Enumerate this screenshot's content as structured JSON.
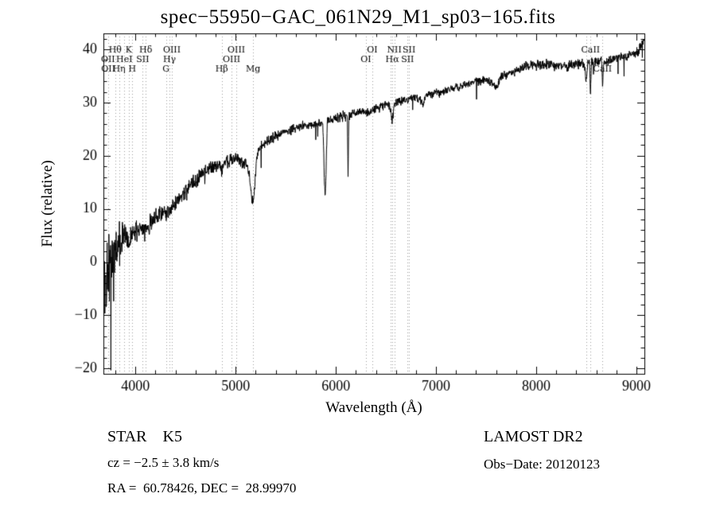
{
  "title": "spec−55950−GAC_061N29_M1_sp03−165.fits",
  "chart_data": {
    "type": "line",
    "title": "spec−55950−GAC_061N29_M1_sp03−165.fits",
    "xlabel": "Wavelength (Å)",
    "ylabel": "Flux (relative)",
    "xlim": [
      3680,
      9080
    ],
    "ylim": [
      -21,
      43
    ],
    "grid": false,
    "xticks": [
      {
        "v": 4000,
        "label": "4000"
      },
      {
        "v": 5000,
        "label": "5000"
      },
      {
        "v": 6000,
        "label": "6000"
      },
      {
        "v": 7000,
        "label": "7000"
      },
      {
        "v": 8000,
        "label": "8000"
      },
      {
        "v": 9000,
        "label": "9000"
      }
    ],
    "yticks": [
      {
        "v": -20,
        "label": "−20"
      },
      {
        "v": -10,
        "label": "−10"
      },
      {
        "v": 0,
        "label": "0"
      },
      {
        "v": 10,
        "label": "10"
      },
      {
        "v": 20,
        "label": "20"
      },
      {
        "v": 30,
        "label": "30"
      },
      {
        "v": 40,
        "label": "40"
      }
    ],
    "x_minor_step": 200,
    "y_minor_step": 2,
    "line_color": "#000000",
    "marker_line_color": "#999999",
    "sample_step": 2.5,
    "seed": 20120123,
    "continuum": [
      [
        3680,
        -4
      ],
      [
        3700,
        -3
      ],
      [
        3730,
        -1.5
      ],
      [
        3760,
        0.5
      ],
      [
        3800,
        2.5
      ],
      [
        3830,
        3.5
      ],
      [
        3860,
        4.2
      ],
      [
        3900,
        4.6
      ],
      [
        3926,
        3.8
      ],
      [
        3933,
        2.5
      ],
      [
        3945,
        3.8
      ],
      [
        3968,
        4.4
      ],
      [
        4000,
        6
      ],
      [
        4050,
        6.6
      ],
      [
        4090,
        6.2
      ],
      [
        4110,
        6.4
      ],
      [
        4150,
        7.3
      ],
      [
        4200,
        8.3
      ],
      [
        4290,
        9.6
      ],
      [
        4305,
        8.8
      ],
      [
        4320,
        9.8
      ],
      [
        4340,
        9.2
      ],
      [
        4360,
        10.3
      ],
      [
        4400,
        11.2
      ],
      [
        4500,
        13.2
      ],
      [
        4600,
        15.2
      ],
      [
        4700,
        17.3
      ],
      [
        4750,
        17.8
      ],
      [
        4820,
        18.4
      ],
      [
        4861,
        17.2
      ],
      [
        4880,
        18.6
      ],
      [
        4950,
        19.2
      ],
      [
        5000,
        19.6
      ],
      [
        5050,
        19
      ],
      [
        5100,
        18.6
      ],
      [
        5130,
        17
      ],
      [
        5160,
        12.5
      ],
      [
        5175,
        11
      ],
      [
        5190,
        14
      ],
      [
        5210,
        20
      ],
      [
        5230,
        21.5
      ],
      [
        5300,
        22.5
      ],
      [
        5400,
        23.6
      ],
      [
        5500,
        24.6
      ],
      [
        5600,
        25.1
      ],
      [
        5700,
        25.6
      ],
      [
        5800,
        26.1
      ],
      [
        5870,
        26.3
      ],
      [
        5885,
        16
      ],
      [
        5893,
        12
      ],
      [
        5901,
        16
      ],
      [
        5915,
        26.5
      ],
      [
        6000,
        27
      ],
      [
        6100,
        27.5
      ],
      [
        6115,
        27.4
      ],
      [
        6122,
        16
      ],
      [
        6130,
        27.6
      ],
      [
        6200,
        28.1
      ],
      [
        6280,
        28.3
      ],
      [
        6310,
        28
      ],
      [
        6400,
        29
      ],
      [
        6500,
        29.6
      ],
      [
        6540,
        29.3
      ],
      [
        6563,
        26.5
      ],
      [
        6585,
        29.6
      ],
      [
        6700,
        30.6
      ],
      [
        6800,
        31.1
      ],
      [
        6860,
        30.2
      ],
      [
        6872,
        29.2
      ],
      [
        6890,
        31.3
      ],
      [
        7000,
        31.8
      ],
      [
        7100,
        32.3
      ],
      [
        7200,
        32.8
      ],
      [
        7300,
        33.3
      ],
      [
        7400,
        34
      ],
      [
        7500,
        34.3
      ],
      [
        7590,
        33.3
      ],
      [
        7615,
        33
      ],
      [
        7640,
        34.8
      ],
      [
        7700,
        35.3
      ],
      [
        7800,
        36
      ],
      [
        7900,
        36.8
      ],
      [
        8000,
        37
      ],
      [
        8100,
        37.2
      ],
      [
        8200,
        37
      ],
      [
        8300,
        36.8
      ],
      [
        8400,
        37.2
      ],
      [
        8480,
        37.3
      ],
      [
        8498,
        33.8
      ],
      [
        8515,
        37.5
      ],
      [
        8534,
        37.3
      ],
      [
        8542,
        31.8
      ],
      [
        8552,
        37.3
      ],
      [
        8600,
        37.6
      ],
      [
        8654,
        37.6
      ],
      [
        8662,
        32.8
      ],
      [
        8672,
        37.6
      ],
      [
        8750,
        38
      ],
      [
        8850,
        38.6
      ],
      [
        8950,
        39
      ],
      [
        9020,
        39.5
      ],
      [
        9060,
        41
      ],
      [
        9080,
        42
      ]
    ],
    "noise_profile": [
      [
        3680,
        8
      ],
      [
        3720,
        7
      ],
      [
        3760,
        5.5
      ],
      [
        3800,
        4
      ],
      [
        3850,
        3
      ],
      [
        3900,
        2.6
      ],
      [
        3950,
        2.3
      ],
      [
        4000,
        2
      ],
      [
        4100,
        1.8
      ],
      [
        4300,
        1.6
      ],
      [
        4500,
        1.4
      ],
      [
        4700,
        1.2
      ],
      [
        5000,
        1.0
      ],
      [
        5400,
        0.9
      ],
      [
        6000,
        0.85
      ],
      [
        6800,
        0.8
      ],
      [
        7600,
        0.8
      ],
      [
        8400,
        0.85
      ],
      [
        9080,
        0.9
      ]
    ],
    "spectral_lines": [
      {
        "wavelength": 3726,
        "label": "OII",
        "row": 2
      },
      {
        "wavelength": 3729,
        "label": "OII",
        "row": 3
      },
      {
        "wavelength": 3798,
        "label": "Hθ",
        "row": 1
      },
      {
        "wavelength": 3835,
        "label": "Hη",
        "row": 3
      },
      {
        "wavelength": 3889,
        "label": "HeI",
        "row": 2
      },
      {
        "wavelength": 3933,
        "label": "K",
        "row": 1
      },
      {
        "wavelength": 3968,
        "label": "H",
        "row": 3
      },
      {
        "wavelength": 4072,
        "label": "SII",
        "row": 2
      },
      {
        "wavelength": 4102,
        "label": "Hδ",
        "row": 1
      },
      {
        "wavelength": 4305,
        "label": "G",
        "row": 3
      },
      {
        "wavelength": 4340,
        "label": "Hγ",
        "row": 2
      },
      {
        "wavelength": 4363,
        "label": "OIII",
        "row": 1
      },
      {
        "wavelength": 4861,
        "label": "Hβ",
        "row": 3
      },
      {
        "wavelength": 4959,
        "label": "OIII",
        "row": 2
      },
      {
        "wavelength": 5007,
        "label": "OIII",
        "row": 1
      },
      {
        "wavelength": 5175,
        "label": "Mg",
        "row": 3
      },
      {
        "wavelength": 6300,
        "label": "OI",
        "row": 2
      },
      {
        "wavelength": 6363,
        "label": "OI",
        "row": 1
      },
      {
        "wavelength": 6548,
        "label": "",
        "row": 0
      },
      {
        "wavelength": 6563,
        "label": "Hα",
        "row": 2
      },
      {
        "wavelength": 6583,
        "label": "NII",
        "row": 1
      },
      {
        "wavelength": 6716,
        "label": "SII",
        "row": 2
      },
      {
        "wavelength": 6731,
        "label": "SII",
        "row": 1
      },
      {
        "wavelength": 8498,
        "label": "",
        "row": 0
      },
      {
        "wavelength": 8542,
        "label": "CaII",
        "row": 1
      },
      {
        "wavelength": 8662,
        "label": "CaII",
        "row": 3
      }
    ]
  },
  "footer": {
    "class_label": "STAR    K5",
    "cz": "cz = −2.5 ± 3.8 km/s",
    "radec": "RA =  60.78426, DEC =  28.99970",
    "survey": "LAMOST DR2",
    "obs_date": "Obs−Date: 20120123"
  }
}
